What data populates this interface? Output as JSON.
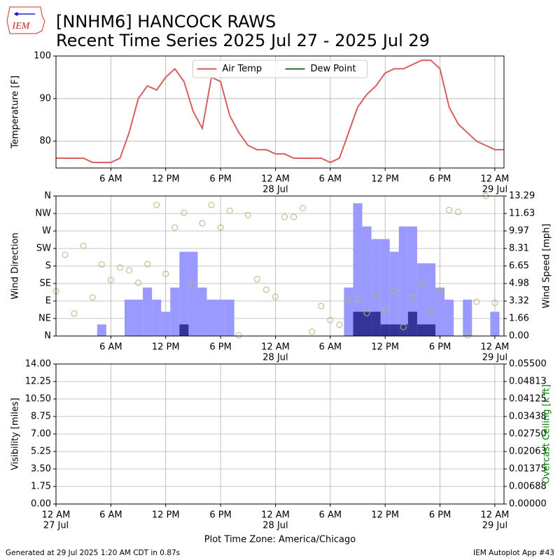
{
  "header": {
    "logo": "IEM",
    "title": "[NNHM6] HANCOCK RAWS",
    "subtitle": "Recent Time Series 2025 Jul 27 - 2025 Jul 29"
  },
  "footer": {
    "generated": "Generated at 29 Jul 2025 1:20 AM CDT in 0.87s",
    "app": "IEM Autoplot App #43"
  },
  "chart_data": [
    {
      "type": "line",
      "ylabel": "Temperature [F]",
      "xlim": [
        "2025-07-27T00:00",
        "2025-07-29T01:00"
      ],
      "ylim": [
        73.7,
        100
      ],
      "yticks": [
        80,
        90,
        100
      ],
      "grid": true,
      "legend": "upper center",
      "xticks": [
        {
          "value": "2025-07-27T06:00",
          "label": "6 AM"
        },
        {
          "value": "2025-07-27T12:00",
          "label": "12 PM"
        },
        {
          "value": "2025-07-27T18:00",
          "label": "6 PM"
        },
        {
          "value": "2025-07-28T00:00",
          "label": "12 AM",
          "date": "28 Jul"
        },
        {
          "value": "2025-07-28T06:00",
          "label": "6 AM"
        },
        {
          "value": "2025-07-28T12:00",
          "label": "12 PM"
        },
        {
          "value": "2025-07-28T18:00",
          "label": "6 PM"
        },
        {
          "value": "2025-07-29T00:00",
          "label": "12 AM",
          "date": "29 Jul"
        }
      ],
      "x": [
        "2025-07-27T00:00",
        "2025-07-27T01:00",
        "2025-07-27T02:00",
        "2025-07-27T03:00",
        "2025-07-27T04:00",
        "2025-07-27T05:00",
        "2025-07-27T06:00",
        "2025-07-27T07:00",
        "2025-07-27T08:00",
        "2025-07-27T09:00",
        "2025-07-27T10:00",
        "2025-07-27T11:00",
        "2025-07-27T12:00",
        "2025-07-27T13:00",
        "2025-07-27T14:00",
        "2025-07-27T15:00",
        "2025-07-27T16:00",
        "2025-07-27T17:00",
        "2025-07-27T18:00",
        "2025-07-27T19:00",
        "2025-07-27T20:00",
        "2025-07-27T21:00",
        "2025-07-27T22:00",
        "2025-07-27T23:00",
        "2025-07-28T00:00",
        "2025-07-28T01:00",
        "2025-07-28T02:00",
        "2025-07-28T03:00",
        "2025-07-28T04:00",
        "2025-07-28T05:00",
        "2025-07-28T06:00",
        "2025-07-28T07:00",
        "2025-07-28T08:00",
        "2025-07-28T09:00",
        "2025-07-28T10:00",
        "2025-07-28T11:00",
        "2025-07-28T12:00",
        "2025-07-28T13:00",
        "2025-07-28T14:00",
        "2025-07-28T15:00",
        "2025-07-28T16:00",
        "2025-07-28T17:00",
        "2025-07-28T18:00",
        "2025-07-28T19:00",
        "2025-07-28T20:00",
        "2025-07-28T21:00",
        "2025-07-28T22:00",
        "2025-07-28T23:00",
        "2025-07-29T00:00",
        "2025-07-29T01:00"
      ],
      "series": [
        {
          "name": "Air Temp",
          "color": "#d6605f",
          "values": [
            76,
            76,
            76,
            76,
            75,
            75,
            75,
            76,
            82,
            90,
            93,
            92,
            95,
            97,
            94,
            87,
            83,
            95,
            94,
            86,
            82,
            79,
            78,
            78,
            77,
            77,
            76,
            76,
            76,
            76,
            75,
            76,
            82,
            88,
            91,
            93,
            96,
            97,
            97,
            98,
            99,
            99,
            97,
            88,
            84,
            82,
            80,
            79,
            78,
            78
          ]
        },
        {
          "name": "Dew Point",
          "color": "#2f6b32",
          "values": [
            null,
            null,
            null,
            null,
            null,
            null,
            null,
            null,
            null,
            null,
            null,
            null,
            null,
            null,
            null,
            null,
            null,
            null,
            null,
            null,
            null,
            null,
            null,
            null,
            null,
            null,
            null,
            null,
            null,
            null,
            null,
            null,
            null,
            null,
            null,
            null,
            null,
            null,
            null,
            null,
            null,
            null,
            null,
            null,
            null,
            null,
            null,
            null,
            null,
            null
          ]
        }
      ]
    },
    {
      "type": "combo",
      "ylabel": "Wind Direction",
      "y2label": "Wind Speed [mph]",
      "xlim": [
        "2025-07-27T00:00",
        "2025-07-29T01:00"
      ],
      "ylim": [
        0,
        360
      ],
      "y2lim": [
        0,
        13.29
      ],
      "grid": true,
      "yticks": [
        {
          "value": 0,
          "label": "N"
        },
        {
          "value": 45,
          "label": "NE"
        },
        {
          "value": 90,
          "label": "E"
        },
        {
          "value": 135,
          "label": "SE"
        },
        {
          "value": 180,
          "label": "S"
        },
        {
          "value": 225,
          "label": "SW"
        },
        {
          "value": 270,
          "label": "W"
        },
        {
          "value": 315,
          "label": "NW"
        },
        {
          "value": 360,
          "label": "N"
        }
      ],
      "y2ticks": [
        {
          "value": 0,
          "label": "0.00"
        },
        1.66,
        3.32,
        4.98,
        6.65,
        8.31,
        9.97,
        11.63,
        13.29
      ],
      "xticks": [
        {
          "value": "2025-07-27T06:00",
          "label": "6 AM"
        },
        {
          "value": "2025-07-27T12:00",
          "label": "12 PM"
        },
        {
          "value": "2025-07-27T18:00",
          "label": "6 PM"
        },
        {
          "value": "2025-07-28T00:00",
          "label": "12 AM",
          "date": "28 Jul"
        },
        {
          "value": "2025-07-28T06:00",
          "label": "6 AM"
        },
        {
          "value": "2025-07-28T12:00",
          "label": "12 PM"
        },
        {
          "value": "2025-07-28T18:00",
          "label": "6 PM"
        },
        {
          "value": "2025-07-29T00:00",
          "label": "12 AM",
          "date": "29 Jul"
        }
      ],
      "x": [
        "2025-07-27T00:00",
        "2025-07-27T01:00",
        "2025-07-27T02:00",
        "2025-07-27T03:00",
        "2025-07-27T04:00",
        "2025-07-27T05:00",
        "2025-07-27T06:00",
        "2025-07-27T07:00",
        "2025-07-27T08:00",
        "2025-07-27T09:00",
        "2025-07-27T10:00",
        "2025-07-27T11:00",
        "2025-07-27T12:00",
        "2025-07-27T13:00",
        "2025-07-27T14:00",
        "2025-07-27T15:00",
        "2025-07-27T16:00",
        "2025-07-27T17:00",
        "2025-07-27T18:00",
        "2025-07-27T19:00",
        "2025-07-27T20:00",
        "2025-07-27T21:00",
        "2025-07-27T22:00",
        "2025-07-27T23:00",
        "2025-07-28T00:00",
        "2025-07-28T01:00",
        "2025-07-28T02:00",
        "2025-07-28T03:00",
        "2025-07-28T04:00",
        "2025-07-28T05:00",
        "2025-07-28T06:00",
        "2025-07-28T07:00",
        "2025-07-28T08:00",
        "2025-07-28T09:00",
        "2025-07-28T10:00",
        "2025-07-28T11:00",
        "2025-07-28T12:00",
        "2025-07-28T13:00",
        "2025-07-28T14:00",
        "2025-07-28T15:00",
        "2025-07-28T16:00",
        "2025-07-28T17:00",
        "2025-07-28T18:00",
        "2025-07-28T19:00",
        "2025-07-28T20:00",
        "2025-07-28T21:00",
        "2025-07-28T22:00",
        "2025-07-28T23:00",
        "2025-07-29T00:00",
        "2025-07-29T01:00"
      ],
      "series": [
        {
          "type": "bar",
          "axis": "y2",
          "color": "#9999ff",
          "values": [
            0,
            0,
            0,
            0,
            0,
            1.1,
            0,
            0,
            3.45,
            3.45,
            4.6,
            3.45,
            2.3,
            4.6,
            8,
            8,
            4.6,
            3.45,
            3.45,
            3.45,
            0,
            0,
            0,
            0,
            0,
            0,
            0,
            0,
            0,
            0,
            0,
            0,
            4.6,
            12.6,
            10.4,
            9.2,
            9.2,
            8,
            10.4,
            10.4,
            6.9,
            6.9,
            4.6,
            3.45,
            0,
            3.45,
            0,
            0,
            2.3,
            null
          ]
        },
        {
          "type": "bar",
          "axis": "y2",
          "color": "#333399",
          "values": [
            0,
            0,
            0,
            0,
            0,
            0,
            0,
            0,
            0,
            0,
            0,
            0,
            0,
            0,
            1.1,
            0,
            0,
            0,
            0,
            0,
            0,
            0,
            0,
            0,
            0,
            0,
            0,
            0,
            0,
            0,
            0,
            0,
            0,
            2.3,
            2.3,
            2.3,
            1.1,
            1.1,
            1.1,
            2.3,
            1.1,
            1.1,
            0,
            0,
            0,
            0,
            0,
            0,
            0,
            null
          ]
        },
        {
          "type": "scatter",
          "color": "#b5b87a",
          "values": [
            115,
            209,
            58,
            232,
            99,
            184,
            144,
            176,
            169,
            137,
            185,
            337,
            160,
            279,
            317,
            131,
            290,
            337,
            279,
            322,
            2,
            311,
            146,
            119,
            101,
            306,
            306,
            329,
            11,
            77,
            41,
            29,
            94,
            94,
            59,
            108,
            65,
            117,
            23,
            99,
            135,
            61,
            117,
            324,
            319,
            2,
            88,
            360,
            85,
            null
          ]
        }
      ]
    },
    {
      "type": "line",
      "ylabel": "Visibility [miles]",
      "y2label": "Overcast Ceiling [k ft]",
      "y2color": "#008000",
      "xlabel": "Plot Time Zone: America/Chicago",
      "xlim": [
        "2025-07-27T00:00",
        "2025-07-29T01:00"
      ],
      "ylim": [
        0,
        14
      ],
      "y2lim": [
        0,
        0.055
      ],
      "grid": true,
      "yticks": [
        {
          "value": 0,
          "label": "0.00"
        },
        1.75,
        {
          "value": 3.5,
          "label": "3.50"
        },
        5.25,
        {
          "value": 7,
          "label": "7.00"
        },
        8.75,
        {
          "value": 10.5,
          "label": "10.50"
        },
        12.25,
        {
          "value": 14,
          "label": "14.00"
        }
      ],
      "y2ticks": [
        {
          "value": 0,
          "label": "0.00000"
        },
        {
          "value": 0.006875,
          "label": "0.00688"
        },
        0.01375,
        {
          "value": 0.020625,
          "label": "0.02063"
        },
        {
          "value": 0.0275,
          "label": "0.02750"
        },
        {
          "value": 0.034375,
          "label": "0.03438"
        },
        0.04125,
        {
          "value": 0.048125,
          "label": "0.04813"
        },
        {
          "value": 0.055,
          "label": "0.05500"
        }
      ],
      "xticks": [
        {
          "value": "2025-07-27T00:00",
          "label": "12 AM",
          "date": "27 Jul"
        },
        {
          "value": "2025-07-27T06:00",
          "label": "6 AM"
        },
        {
          "value": "2025-07-27T12:00",
          "label": "12 PM"
        },
        {
          "value": "2025-07-27T18:00",
          "label": "6 PM"
        },
        {
          "value": "2025-07-28T00:00",
          "label": "12 AM",
          "date": "28 Jul"
        },
        {
          "value": "2025-07-28T06:00",
          "label": "6 AM"
        },
        {
          "value": "2025-07-28T12:00",
          "label": "12 PM"
        },
        {
          "value": "2025-07-28T18:00",
          "label": "6 PM"
        },
        {
          "value": "2025-07-29T00:00",
          "label": "12 AM",
          "date": "29 Jul"
        }
      ],
      "series": []
    }
  ]
}
